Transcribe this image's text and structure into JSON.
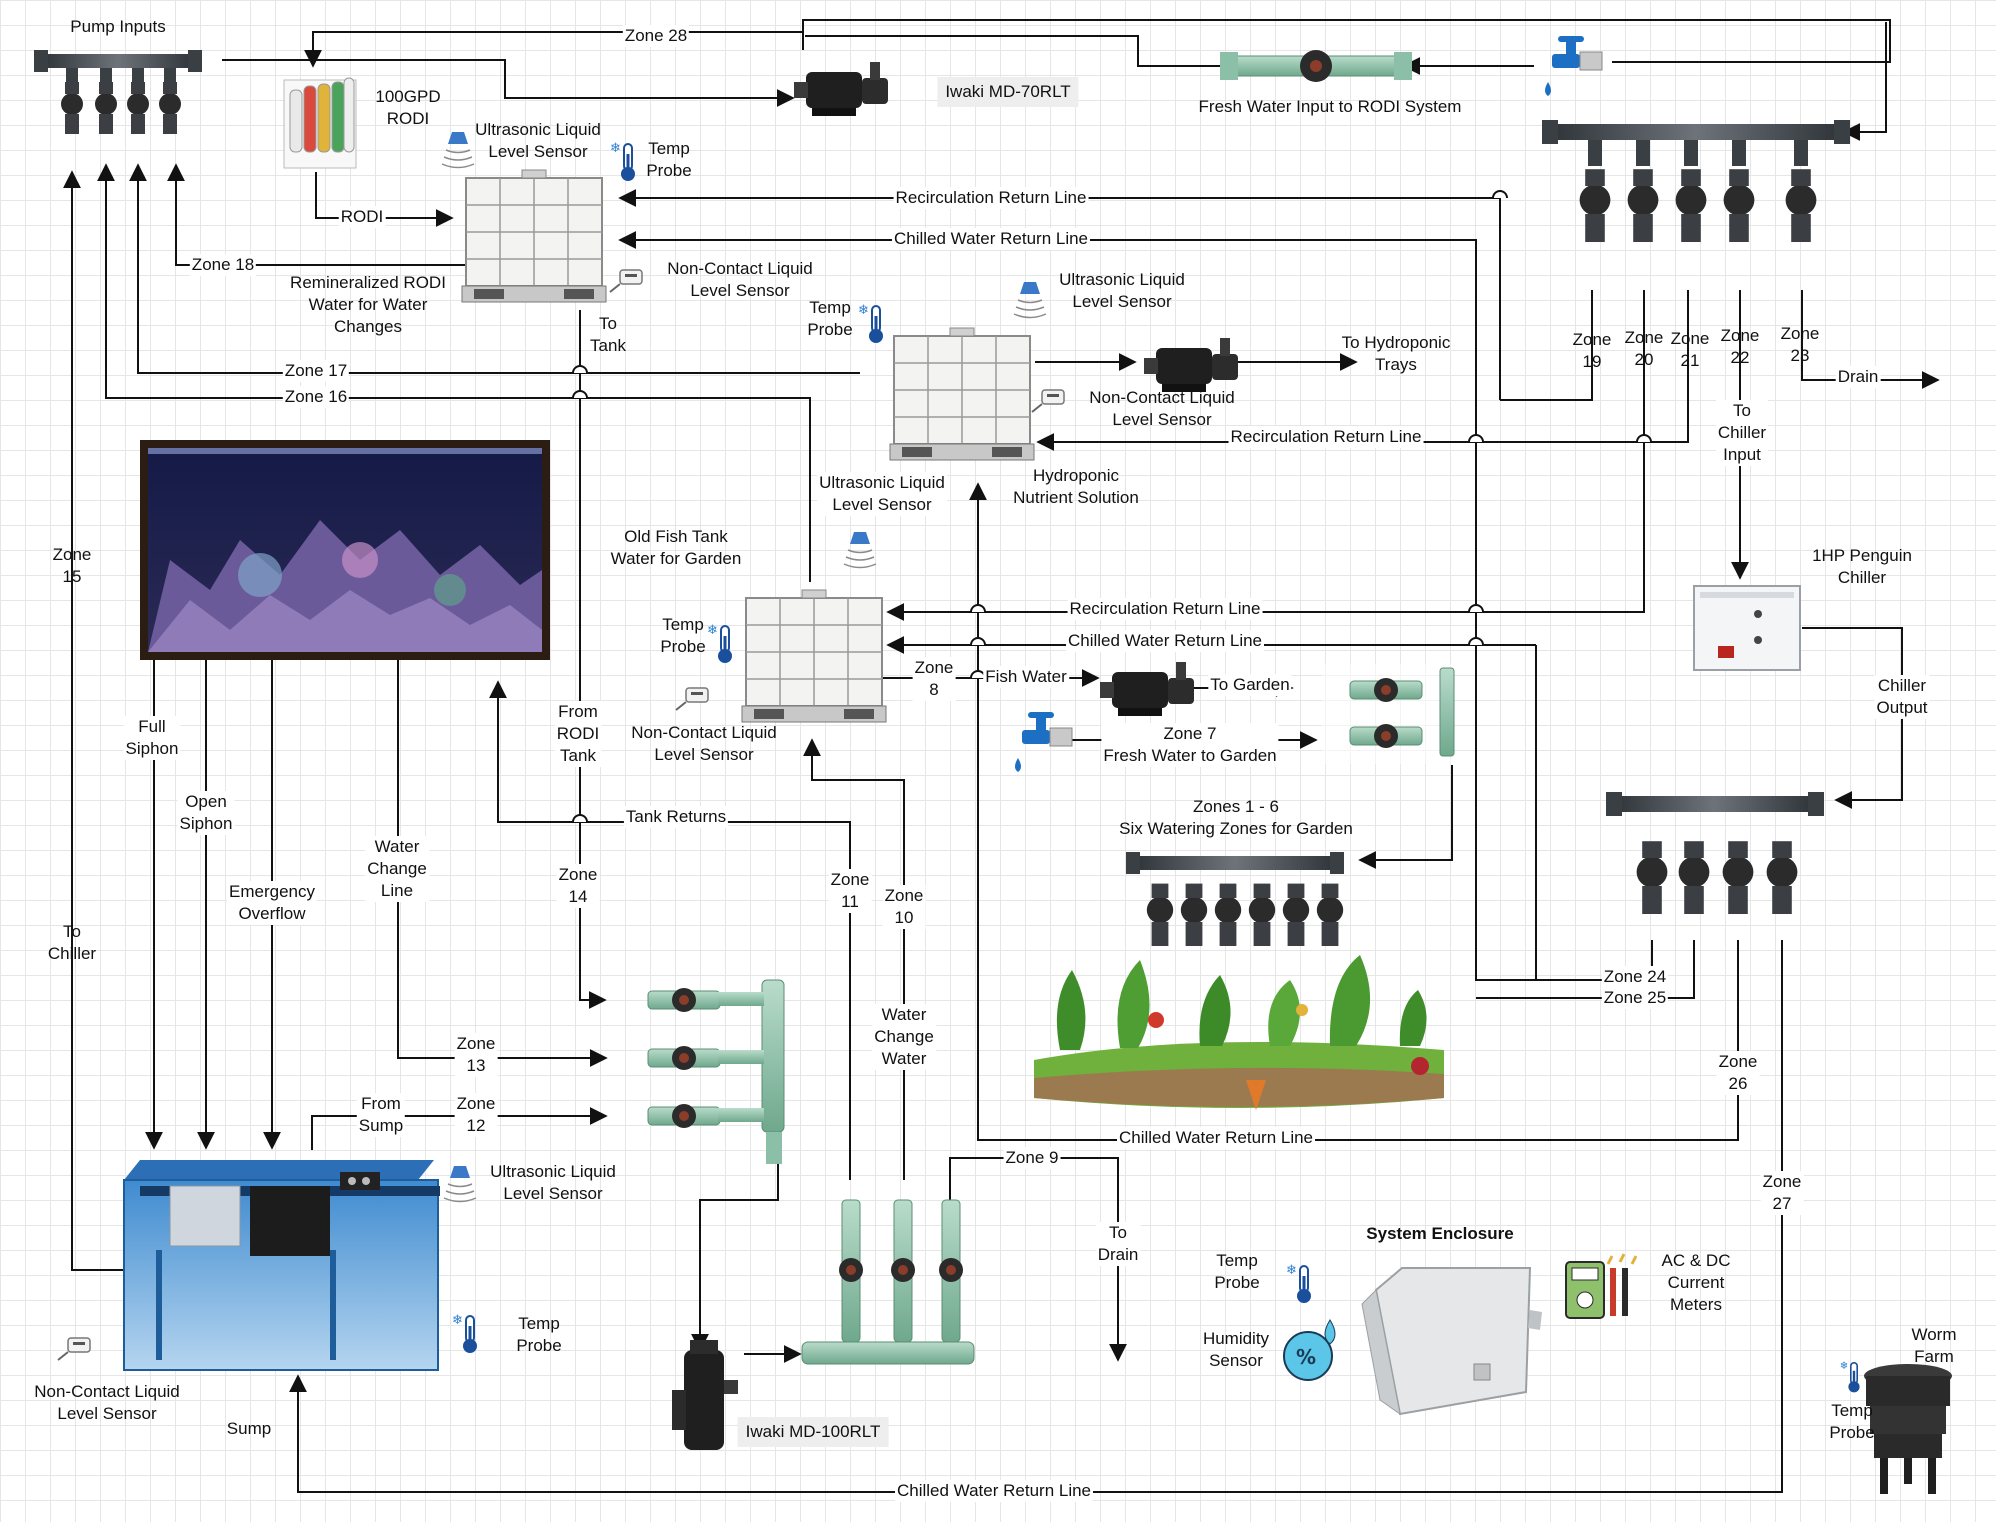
{
  "labels": {
    "pump_inputs": "Pump Inputs",
    "rodi_100gpd": "100GPD\nRODI",
    "iwaki_70": "Iwaki MD-70RLT",
    "iwaki_100": "Iwaki MD-100RLT",
    "fresh_water_input": "Fresh Water Input to RODI System",
    "rodi": "RODI",
    "ultrasonic_1": "Ultrasonic Liquid\nLevel Sensor",
    "temp_probe_1": "Temp\nProbe",
    "non_contact_1": "Non-Contact Liquid\nLevel Sensor",
    "remineralized": "Remineralized RODI\nWater for Water\nChanges",
    "to_tank": "To\nTank",
    "recirc_return_1": "Recirculation Return Line",
    "chilled_return_1": "Chilled Water Return Line",
    "temp_probe_2": "Temp\nProbe",
    "ultrasonic_2": "Ultrasonic Liquid\nLevel Sensor",
    "to_hydroponic": "To Hydroponic\nTrays",
    "non_contact_2": "Non-Contact Liquid\nLevel Sensor",
    "recirc_return_2": "Recirculation Return Line",
    "hydroponic_nutrient": "Hydroponic\nNutrient Solution",
    "drain": "Drain",
    "to_chiller_input": "To\nChiller\nInput",
    "chiller": "1HP Penguin\nChiller",
    "chiller_output": "Chiller\nOutput",
    "ultrasonic_3": "Ultrasonic Liquid\nLevel Sensor",
    "old_fish_tank": "Old Fish Tank\nWater for Garden",
    "temp_probe_3": "Temp\nProbe",
    "non_contact_3": "Non-Contact Liquid\nLevel Sensor",
    "recirc_return_3": "Recirculation Return Line",
    "chilled_return_3": "Chilled Water Return Line",
    "fish_water": "Fish Water",
    "to_garden": "To Garden",
    "zone7_fresh": "Zone 7\nFresh Water to Garden",
    "zones_1_6": "Zones 1 - 6\nSix Watering Zones for Garden",
    "full_siphon": "Full\nSiphon",
    "open_siphon": "Open\nSiphon",
    "emergency_overflow": "Emergency\nOverflow",
    "water_change_line": "Water\nChange\nLine",
    "from_rodi_tank": "From\nRODI\nTank",
    "tank_returns": "Tank Returns",
    "to_chiller": "To\nChiller",
    "water_change_water": "Water\nChange\nWater",
    "from_sump": "From\nSump",
    "ultrasonic_sump": "Ultrasonic Liquid\nLevel Sensor",
    "temp_probe_sump": "Temp\nProbe",
    "non_contact_sump": "Non-Contact Liquid\nLevel Sensor",
    "sump": "Sump",
    "to_drain": "To\nDrain",
    "system_enclosure": "System Enclosure",
    "temp_probe_enc": "Temp\nProbe",
    "humidity_sensor": "Humidity\nSensor",
    "current_meters": "AC & DC\nCurrent\nMeters",
    "worm_farm": "Worm Farm",
    "temp_probe_worm": "Temp\nProbe",
    "chilled_return_4": "Chilled Water Return Line",
    "chilled_return_5": "Chilled Water Return Line"
  },
  "zones": {
    "z28": "Zone 28",
    "z18": "Zone 18",
    "z17": "Zone 17",
    "z16": "Zone 16",
    "z15": "Zone\n15",
    "z19": "Zone\n19",
    "z20": "Zone\n20",
    "z21": "Zone\n21",
    "z22": "Zone\n22",
    "z23": "Zone\n23",
    "z8": "Zone\n8",
    "z14": "Zone\n14",
    "z13": "Zone\n13",
    "z12": "Zone\n12",
    "z11": "Zone\n11",
    "z10": "Zone\n10",
    "z9": "Zone 9",
    "z24": "Zone 24",
    "z25": "Zone 25",
    "z26": "Zone\n26",
    "z27": "Zone\n27"
  },
  "icons": [
    "manifold-icon",
    "pump-icon",
    "tote-tank-icon",
    "faucet-icon",
    "thermometer-icon",
    "ultrasonic-sensor-icon",
    "non-contact-sensor-icon",
    "rodi-filter-icon",
    "aquarium-icon",
    "sump-icon",
    "chiller-icon",
    "garden-icon",
    "enclosure-box-icon",
    "humidity-icon",
    "multimeter-icon",
    "worm-farm-icon"
  ]
}
